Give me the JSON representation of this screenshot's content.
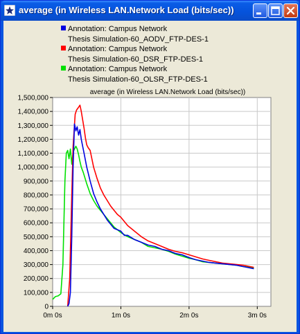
{
  "window": {
    "title": "average (in Wireless LAN.Network Load (bits/sec))",
    "icon": "star-icon",
    "buttons": [
      "minimize-icon",
      "maximize-icon",
      "close-icon"
    ]
  },
  "legend": [
    {
      "line1": "Annotation: Campus Network",
      "line2": "Thesis Simulation-60_AODV_FTP-DES-1",
      "color": "#0000E0"
    },
    {
      "line1": "Annotation: Campus Network",
      "line2": "Thesis Simulation-60_DSR_FTP-DES-1",
      "color": "#FF0000"
    },
    {
      "line1": "Annotation: Campus Network",
      "line2": "Thesis Simulation-60_OLSR_FTP-DES-1",
      "color": "#00E000"
    }
  ],
  "chart_data": {
    "type": "line",
    "title": "average (in Wireless LAN.Network Load (bits/sec))",
    "xlabel": "",
    "ylabel": "",
    "xlim": [
      0,
      3.2
    ],
    "ylim": [
      0,
      1500000
    ],
    "x_ticks": [
      0,
      1,
      2,
      3
    ],
    "x_tick_labels": [
      "0m 0s",
      "1m 0s",
      "2m 0s",
      "3m 0s"
    ],
    "y_ticks": [
      0,
      100000,
      200000,
      300000,
      400000,
      500000,
      600000,
      700000,
      800000,
      900000,
      1000000,
      1100000,
      1200000,
      1300000,
      1400000,
      1500000
    ],
    "y_tick_labels": [
      "0",
      "100,000",
      "200,000",
      "300,000",
      "400,000",
      "500,000",
      "600,000",
      "700,000",
      "800,000",
      "900,000",
      "1,000,000",
      "1,100,000",
      "1,200,000",
      "1,300,000",
      "1,400,000",
      "1,500,000"
    ],
    "grid": true,
    "legend_position": "top",
    "series": [
      {
        "color": "#0000E0",
        "x": [
          0.22,
          0.24,
          0.26,
          0.28,
          0.3,
          0.32,
          0.34,
          0.36,
          0.38,
          0.4,
          0.42,
          0.44,
          0.46,
          0.5,
          0.55,
          0.6,
          0.65,
          0.7,
          0.75,
          0.8,
          0.85,
          0.9,
          0.95,
          1.0,
          1.05,
          1.1,
          1.2,
          1.3,
          1.4,
          1.5,
          1.6,
          1.7,
          1.8,
          1.9,
          2.0,
          2.1,
          2.2,
          2.3,
          2.4,
          2.5,
          2.6,
          2.7,
          2.8,
          2.9,
          2.95
        ],
        "y": [
          0,
          20000,
          100000,
          500000,
          1000000,
          1310000,
          1260000,
          1290000,
          1230000,
          1270000,
          1200000,
          1150000,
          1100000,
          1000000,
          900000,
          810000,
          750000,
          700000,
          660000,
          620000,
          590000,
          560000,
          550000,
          540000,
          510000,
          510000,
          480000,
          460000,
          440000,
          430000,
          410000,
          400000,
          380000,
          370000,
          350000,
          335000,
          325000,
          315000,
          310000,
          305000,
          300000,
          295000,
          285000,
          275000,
          270000
        ]
      },
      {
        "color": "#FF0000",
        "x": [
          0.22,
          0.25,
          0.28,
          0.3,
          0.33,
          0.35,
          0.38,
          0.4,
          0.42,
          0.44,
          0.46,
          0.48,
          0.5,
          0.52,
          0.55,
          0.6,
          0.65,
          0.7,
          0.75,
          0.8,
          0.85,
          0.9,
          0.95,
          1.0,
          1.1,
          1.2,
          1.3,
          1.4,
          1.5,
          1.6,
          1.7,
          1.8,
          1.9,
          2.0,
          2.1,
          2.2,
          2.3,
          2.4,
          2.5,
          2.6,
          2.7,
          2.8,
          2.9,
          2.95
        ],
        "y": [
          0,
          200000,
          800000,
          1150000,
          1380000,
          1410000,
          1430000,
          1445000,
          1400000,
          1340000,
          1280000,
          1210000,
          1160000,
          1140000,
          1120000,
          1000000,
          920000,
          850000,
          800000,
          760000,
          720000,
          690000,
          660000,
          640000,
          580000,
          540000,
          500000,
          470000,
          450000,
          430000,
          410000,
          395000,
          385000,
          370000,
          355000,
          340000,
          330000,
          320000,
          310000,
          305000,
          300000,
          295000,
          285000,
          280000
        ]
      },
      {
        "color": "#00E000",
        "x": [
          0.0,
          0.04,
          0.08,
          0.12,
          0.15,
          0.18,
          0.2,
          0.22,
          0.24,
          0.26,
          0.28,
          0.3,
          0.32,
          0.34,
          0.36,
          0.38,
          0.4,
          0.42,
          0.45,
          0.5,
          0.55,
          0.6,
          0.65,
          0.7,
          0.75,
          0.8,
          0.85,
          0.9,
          1.0,
          1.1,
          1.2,
          1.3,
          1.4,
          1.5,
          1.6,
          1.7,
          1.8,
          1.9,
          2.0,
          2.1,
          2.2,
          2.3,
          2.4,
          2.5,
          2.6,
          2.7,
          2.8,
          2.9,
          2.95
        ],
        "y": [
          50000,
          70000,
          75000,
          90000,
          300000,
          900000,
          1100000,
          1120000,
          1060000,
          1130000,
          1020000,
          1110000,
          1130000,
          1150000,
          1130000,
          1090000,
          1040000,
          1000000,
          960000,
          880000,
          810000,
          760000,
          720000,
          690000,
          660000,
          630000,
          600000,
          570000,
          530000,
          500000,
          480000,
          460000,
          430000,
          420000,
          410000,
          395000,
          375000,
          360000,
          345000,
          335000,
          320000,
          315000,
          310000,
          305000,
          300000,
          295000,
          285000,
          280000,
          275000
        ]
      }
    ]
  }
}
